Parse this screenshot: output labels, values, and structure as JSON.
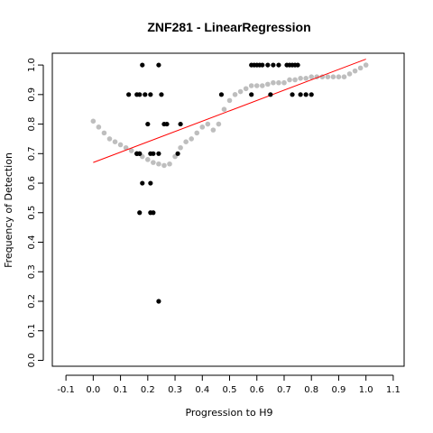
{
  "chart_data": {
    "type": "scatter",
    "title": "ZNF281 - LinearRegression",
    "xlabel": "Progression to H9",
    "ylabel": "Frequency of Detection",
    "xlim": [
      -0.15,
      1.14
    ],
    "ylim": [
      -0.02,
      1.04
    ],
    "xticks": [
      "-0.1",
      "0.0",
      "0.1",
      "0.2",
      "0.3",
      "0.4",
      "0.5",
      "0.6",
      "0.7",
      "0.8",
      "0.9",
      "1.0",
      "1.1"
    ],
    "yticks": [
      "0.0",
      "0.1",
      "0.2",
      "0.3",
      "0.4",
      "0.5",
      "0.6",
      "0.7",
      "0.8",
      "0.9",
      "1.0"
    ],
    "grid": false,
    "colors": {
      "observed": "#000000",
      "smoothed": "#bebebe",
      "regression": "#ff0000"
    },
    "series": [
      {
        "role": "observed",
        "marker": "point",
        "x": [
          0.13,
          0.16,
          0.17,
          0.18,
          0.19,
          0.24,
          0.21,
          0.25,
          0.16,
          0.17,
          0.2,
          0.26,
          0.27,
          0.32,
          0.16,
          0.17,
          0.21,
          0.22,
          0.24,
          0.31,
          0.18,
          0.21,
          0.17,
          0.21,
          0.22,
          0.24,
          0.47,
          0.58,
          0.59,
          0.6,
          0.61,
          0.62,
          0.64,
          0.66,
          0.68,
          0.71,
          0.72,
          0.73,
          0.74,
          0.75,
          0.58,
          0.65,
          0.73,
          0.76,
          0.78,
          0.8
        ],
        "y": [
          0.9,
          0.9,
          0.9,
          1.0,
          0.9,
          1.0,
          0.9,
          0.9,
          0.7,
          0.7,
          0.8,
          0.8,
          0.8,
          0.8,
          0.7,
          0.7,
          0.7,
          0.7,
          0.7,
          0.7,
          0.6,
          0.6,
          0.5,
          0.5,
          0.5,
          0.2,
          0.9,
          1.0,
          1.0,
          1.0,
          1.0,
          1.0,
          1.0,
          1.0,
          1.0,
          1.0,
          1.0,
          1.0,
          1.0,
          1.0,
          0.9,
          0.9,
          0.9,
          0.9,
          0.9,
          0.9
        ]
      },
      {
        "role": "smoothed",
        "marker": "point",
        "x": [
          0.0,
          0.02,
          0.04,
          0.06,
          0.08,
          0.1,
          0.12,
          0.14,
          0.16,
          0.18,
          0.2,
          0.22,
          0.24,
          0.26,
          0.28,
          0.3,
          0.32,
          0.34,
          0.36,
          0.38,
          0.4,
          0.42,
          0.44,
          0.46,
          0.48,
          0.5,
          0.52,
          0.54,
          0.56,
          0.58,
          0.6,
          0.62,
          0.64,
          0.66,
          0.68,
          0.7,
          0.72,
          0.74,
          0.76,
          0.78,
          0.8,
          0.82,
          0.84,
          0.86,
          0.88,
          0.9,
          0.92,
          0.94,
          0.96,
          0.98,
          1.0
        ],
        "y": [
          0.81,
          0.79,
          0.77,
          0.75,
          0.74,
          0.73,
          0.72,
          0.71,
          0.7,
          0.69,
          0.68,
          0.67,
          0.665,
          0.66,
          0.665,
          0.69,
          0.72,
          0.74,
          0.75,
          0.77,
          0.79,
          0.8,
          0.78,
          0.8,
          0.85,
          0.88,
          0.9,
          0.91,
          0.92,
          0.93,
          0.93,
          0.93,
          0.935,
          0.94,
          0.94,
          0.94,
          0.95,
          0.95,
          0.955,
          0.955,
          0.96,
          0.96,
          0.96,
          0.96,
          0.96,
          0.96,
          0.96,
          0.97,
          0.98,
          0.99,
          1.0
        ]
      },
      {
        "role": "regression",
        "marker": "line",
        "x": [
          0.0,
          1.0
        ],
        "y": [
          0.67,
          1.02
        ]
      }
    ]
  }
}
